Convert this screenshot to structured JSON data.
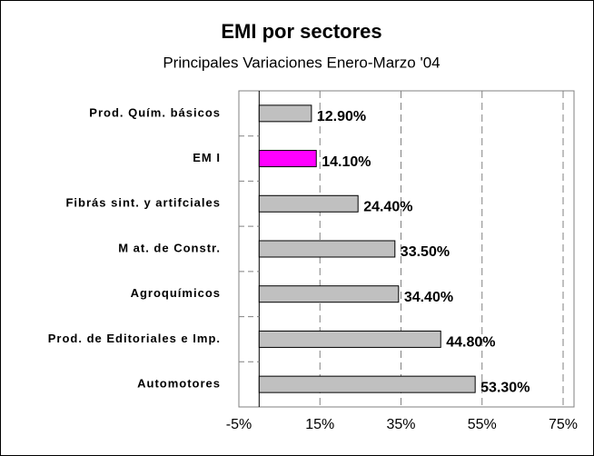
{
  "chart_data": {
    "type": "bar",
    "orientation": "horizontal",
    "title": "EMI por sectores",
    "subtitle": "Principales Variaciones Enero-Marzo '04",
    "categories": [
      "Prod. Quím. básicos",
      "EM I",
      "Fibrás sint. y artifciales",
      "M at. de Constr.",
      "Agroquímicos",
      "Prod. de Editoriales e Imp.",
      "Automotores"
    ],
    "values": [
      12.9,
      14.1,
      24.4,
      33.5,
      34.4,
      44.8,
      53.3
    ],
    "value_labels": [
      "12.90%",
      "14.10%",
      "24.40%",
      "33.50%",
      "34.40%",
      "44.80%",
      "53.30%"
    ],
    "colors": [
      "#c0c0c0",
      "#ff00ff",
      "#c0c0c0",
      "#c0c0c0",
      "#c0c0c0",
      "#c0c0c0",
      "#c0c0c0"
    ],
    "xlim": [
      -5,
      75
    ],
    "xticks": [
      {
        "value": -5,
        "label": "-5%"
      },
      {
        "value": 15,
        "label": "15%"
      },
      {
        "value": 35,
        "label": "35%"
      },
      {
        "value": 55,
        "label": "55%"
      },
      {
        "value": 75,
        "label": "75%"
      }
    ],
    "grid": true
  }
}
